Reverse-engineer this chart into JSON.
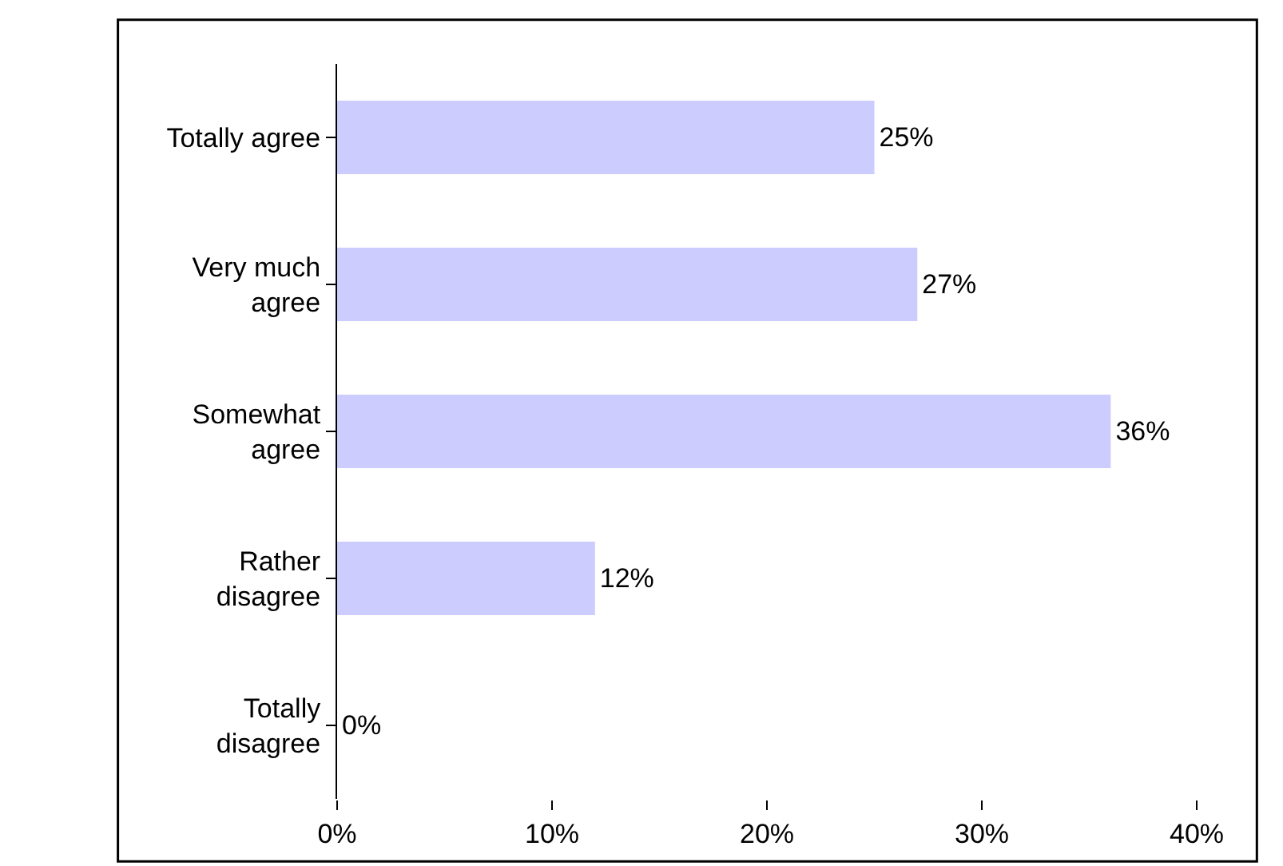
{
  "chart_data": {
    "type": "bar",
    "orientation": "horizontal",
    "categories": [
      "Totally agree",
      "Very much agree",
      "Somewhat agree",
      "Rather disagree",
      "Totally disagree"
    ],
    "values": [
      25,
      27,
      36,
      12,
      0
    ],
    "value_labels": [
      "25%",
      "27%",
      "36%",
      "12%",
      "0%"
    ],
    "color": "#ccccff",
    "xlim": [
      0,
      40
    ],
    "xticks": [
      {
        "value": 0,
        "label": "0%"
      },
      {
        "value": 10,
        "label": "10%"
      },
      {
        "value": 20,
        "label": "20%"
      },
      {
        "value": 30,
        "label": "30%"
      },
      {
        "value": 40,
        "label": "40%"
      }
    ],
    "grid": false,
    "legend": false
  }
}
